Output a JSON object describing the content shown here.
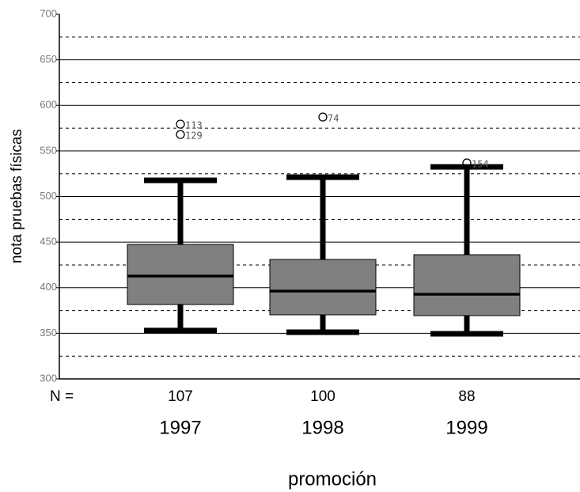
{
  "chart_data": {
    "type": "box",
    "ylabel": "nota pruebas físicas",
    "xlabel": "promoción",
    "categories": [
      "1997",
      "1998",
      "1999"
    ],
    "count_label": "N =",
    "counts": [
      107,
      100,
      88
    ],
    "boxes": [
      {
        "whislo": 353,
        "q1": 381.6,
        "med": 412.8,
        "q3": 447.5,
        "whishi": 517.8,
        "outliers": [
          {
            "value": 579.4,
            "label": "113"
          },
          {
            "value": 568.1,
            "label": "129"
          }
        ]
      },
      {
        "whislo": 351.2,
        "q1": 370.3,
        "med": 396.3,
        "q3": 431,
        "whishi": 521.3,
        "outliers": [
          {
            "value": 587.2,
            "label": "74"
          }
        ]
      },
      {
        "whislo": 349.5,
        "q1": 369.4,
        "med": 392.8,
        "q3": 436.2,
        "whishi": 532.5,
        "outliers": [
          {
            "value": 536.9,
            "label": "154"
          }
        ]
      }
    ],
    "color": "#808080",
    "ylim": [
      300,
      700
    ],
    "yticks": [
      300,
      350,
      400,
      450,
      500,
      550,
      600,
      650,
      700
    ],
    "minor_yticks": [
      325,
      375,
      425,
      475,
      525,
      575,
      625,
      675
    ],
    "grid": true
  }
}
